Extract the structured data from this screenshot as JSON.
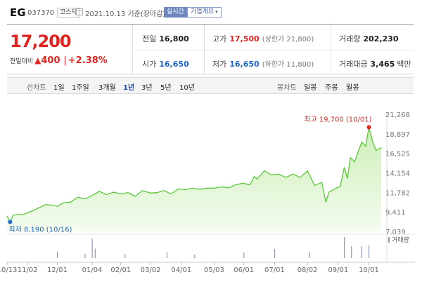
{
  "header": {
    "stock_name": "EG",
    "stock_code": "037370",
    "market": "코스닥",
    "date_text": "2021.10.13 기준(장마감)",
    "realtime_label": "실시간",
    "company_info_label": "기업개요",
    "caret": "▾"
  },
  "summary": {
    "current_price": "17,200",
    "change_label": "전일대비",
    "change_arrow": "▲",
    "change_amount": "400",
    "change_sep": "|",
    "change_rate": "+2.38%",
    "prev_close_label": "전일",
    "prev_close": "16,800",
    "high_label": "고가",
    "high": "17,500",
    "high_limit": "(상한가 21,800)",
    "volume_label": "거래량",
    "volume": "202,230",
    "open_label": "시가",
    "open": "16,650",
    "low_label": "저가",
    "low": "16,650",
    "low_limit": "(하한가 11,800)",
    "amount_label": "거래대금",
    "amount": "3,465",
    "amount_unit": "백만"
  },
  "period_bar": {
    "line_chart_label": "선차트",
    "periods": [
      "1일",
      "1주일",
      "3개월",
      "1년",
      "3년",
      "5년",
      "10년"
    ],
    "active_period": "1년",
    "candle_chart_label": "봉차트",
    "candles": [
      "일봉",
      "주봉",
      "월봉"
    ]
  },
  "chart_data": {
    "type": "area",
    "ylim": [
      7039,
      21268
    ],
    "y_ticks": [
      21268,
      18897,
      16525,
      14154,
      11782,
      9411,
      7039
    ],
    "y_tick_labels": [
      "21,268",
      "18,897",
      "16,525",
      "14,154",
      "11,782",
      "9,411",
      "7,039"
    ],
    "x_tick_labels": [
      "10/13",
      "11/02",
      "12/01",
      "01/04",
      "02/01",
      "03/02",
      "04/01",
      "05/03",
      "06/01",
      "07/01",
      "08/02",
      "09/01",
      "10/01"
    ],
    "x_tick_dates": [
      "2020-10-13",
      "2020-11-02",
      "2020-12-01",
      "2021-01-04",
      "2021-02-01",
      "2021-03-02",
      "2021-04-01",
      "2021-05-03",
      "2021-06-01",
      "2021-07-01",
      "2021-08-02",
      "2021-09-01",
      "2021-10-01"
    ],
    "x_range": [
      "2020-10-13",
      "2021-10-13"
    ],
    "price_series": {
      "dates": [
        "2020-10-13",
        "2020-10-16",
        "2020-10-19",
        "2020-10-23",
        "2020-10-28",
        "2020-11-02",
        "2020-11-06",
        "2020-11-13",
        "2020-11-20",
        "2020-11-27",
        "2020-12-01",
        "2020-12-07",
        "2020-12-14",
        "2020-12-21",
        "2020-12-28",
        "2021-01-04",
        "2021-01-11",
        "2021-01-18",
        "2021-01-25",
        "2021-02-01",
        "2021-02-08",
        "2021-02-15",
        "2021-02-22",
        "2021-03-02",
        "2021-03-08",
        "2021-03-15",
        "2021-03-22",
        "2021-03-29",
        "2021-04-05",
        "2021-04-12",
        "2021-04-19",
        "2021-04-26",
        "2021-05-03",
        "2021-05-10",
        "2021-05-17",
        "2021-05-24",
        "2021-05-31",
        "2021-06-07",
        "2021-06-11",
        "2021-06-14",
        "2021-06-21",
        "2021-06-28",
        "2021-07-05",
        "2021-07-12",
        "2021-07-19",
        "2021-07-26",
        "2021-08-02",
        "2021-08-09",
        "2021-08-16",
        "2021-08-20",
        "2021-08-23",
        "2021-08-30",
        "2021-09-03",
        "2021-09-07",
        "2021-09-10",
        "2021-09-13",
        "2021-09-17",
        "2021-09-24",
        "2021-09-28",
        "2021-10-01",
        "2021-10-05",
        "2021-10-08",
        "2021-10-13"
      ],
      "prices": [
        8900,
        8190,
        9000,
        9100,
        9050,
        9300,
        9500,
        9900,
        10300,
        10200,
        10100,
        10500,
        10600,
        11200,
        11000,
        11400,
        11900,
        11500,
        11800,
        11600,
        11750,
        11300,
        12000,
        11700,
        11750,
        12000,
        11600,
        12200,
        12100,
        12300,
        12150,
        12300,
        12300,
        12450,
        12350,
        12700,
        12900,
        12700,
        13700,
        13400,
        14400,
        13900,
        14000,
        13600,
        14000,
        13600,
        14400,
        12600,
        13000,
        10600,
        11800,
        12300,
        12500,
        14800,
        13500,
        16000,
        15500,
        17900,
        17400,
        19700,
        17800,
        16900,
        17200
      ]
    },
    "high_marker": {
      "label": "최고 19,700 (10/01)",
      "date": "2021-10-01",
      "value": 19700
    },
    "low_marker": {
      "label": "최저 8,190 (10/16)",
      "date": "2020-10-16",
      "value": 8190
    },
    "volume_label": "거래량",
    "volume_series": {
      "dates": [
        "2020-12-01",
        "2020-12-28",
        "2021-01-04",
        "2021-01-07",
        "2021-02-05",
        "2021-03-18",
        "2021-04-14",
        "2021-06-01",
        "2021-07-01",
        "2021-08-04",
        "2021-09-07",
        "2021-09-14",
        "2021-09-24",
        "2021-10-01"
      ],
      "volumes": [
        500000,
        320000,
        1480000,
        720000,
        300000,
        450000,
        280000,
        420000,
        700000,
        500000,
        1600000,
        900000,
        900000,
        1000000
      ]
    },
    "colors": {
      "line": "#5cc73b",
      "fill_top": "#cdeeb8",
      "fill_bottom": "#f4fcef",
      "high": "#e22420",
      "low": "#1f67c8",
      "volume": "#8e99b8"
    },
    "grid": false
  }
}
